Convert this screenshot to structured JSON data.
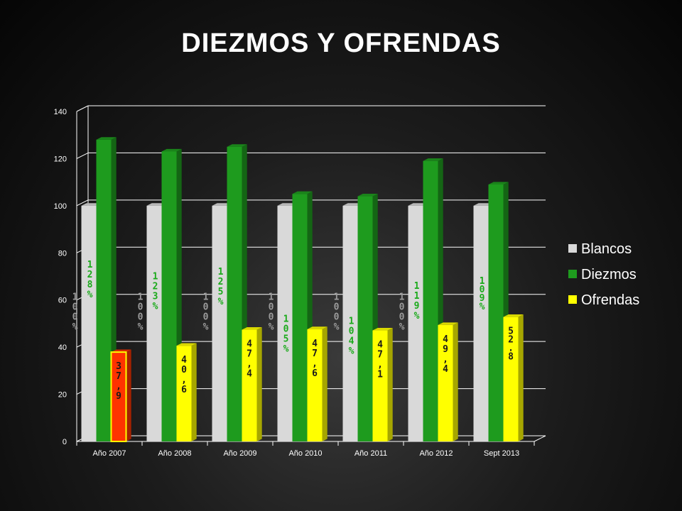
{
  "slide": {
    "title": "DIEZMOS Y OFRENDAS"
  },
  "chart_data": {
    "type": "bar",
    "ylim": [
      0,
      140
    ],
    "yticks": [
      0,
      20,
      40,
      60,
      80,
      100,
      120,
      140
    ],
    "grid": true,
    "legend_position": "right",
    "categories": [
      "Año 2007",
      "Año 2008",
      "Año 2009",
      "Año 2010",
      "Año 2011",
      "Año 2012",
      "Sept 2013"
    ],
    "series": [
      {
        "name": "Blancos",
        "color": "#d9d9d9",
        "values": [
          100,
          100,
          100,
          100,
          100,
          100,
          100
        ],
        "labels": [
          "100%",
          "100%",
          "100%",
          "100%",
          "100%",
          "100%",
          ""
        ]
      },
      {
        "name": "Diezmos",
        "color": "#1e9b1e",
        "values": [
          128,
          123,
          125,
          105,
          104,
          119,
          109
        ],
        "labels": [
          "128%",
          "123%",
          "125%",
          "105%",
          "104%",
          "119%",
          "109%"
        ]
      },
      {
        "name": "Ofrendas",
        "color": "#ffff00",
        "values": [
          37.9,
          40.6,
          47.4,
          47.6,
          47.1,
          49.4,
          52.8
        ],
        "labels": [
          "37,9",
          "40,6",
          "47,4",
          "47,6",
          "47,1",
          "49,4",
          "52.8"
        ],
        "highlight": {
          "index": 0,
          "color": "#ff3300"
        }
      }
    ]
  }
}
